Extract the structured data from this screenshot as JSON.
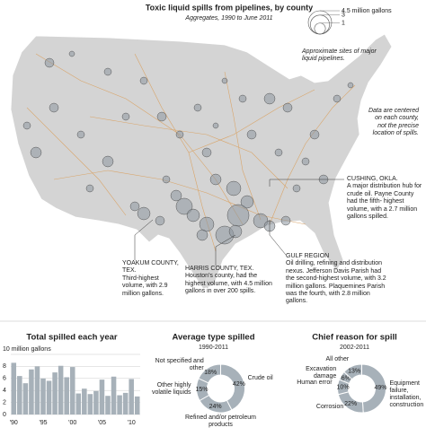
{
  "map": {
    "title": "Toxic liquid spills from pipelines, by county",
    "subtitle": "Aggregates, 1990 to June 2011",
    "size_legend": [
      {
        "value": 4.5,
        "label": "4.5 million gallons"
      },
      {
        "value": 3,
        "label": "3"
      },
      {
        "value": 1,
        "label": "1"
      }
    ],
    "notes": [
      "Approximate sites of major liquid pipelines.",
      "Data are centered on each county, not the precise location of spills."
    ],
    "callouts": [
      {
        "heading": "CUSHING, OKLA.",
        "text": "A major distribution hub for crude oil. Payne County had the fifth- highest volume, with a 2.7 million gallons spilled."
      },
      {
        "heading": "YOAKUM COUNTY, TEX.",
        "text": "Third-highest volume, with 2.9 million gallons."
      },
      {
        "heading": "HARRIS COUNTY, TEX.",
        "text": "Houston's county, had the highest volume, with 4.5 million gallons in over 200 spills."
      },
      {
        "heading": "GULF REGION",
        "text": "Oil drilling, refining and distribution nexus. Jefferson Davis Parish had the second-highest volume, with 3.2 million gallons. Plaquemines Parish was the fourth, with 2.8 million gallons."
      }
    ]
  },
  "chart_data": [
    {
      "type": "bar",
      "title": "Total spilled each year",
      "categories": [
        "'90",
        null,
        null,
        null,
        null,
        "'95",
        null,
        null,
        null,
        null,
        "'00",
        null,
        null,
        null,
        null,
        "'05",
        null,
        null,
        null,
        null,
        "'10",
        null
      ],
      "values": [
        8.6,
        6.4,
        5.2,
        7.5,
        8.0,
        6.0,
        5.6,
        7.0,
        8.1,
        6.2,
        7.9,
        3.5,
        4.3,
        3.4,
        3.9,
        5.8,
        3.1,
        6.3,
        3.2,
        3.6,
        5.9,
        3.0
      ],
      "color": "#a7b1b9",
      "ylim": [
        0,
        10
      ],
      "yticks": [
        0,
        2,
        4,
        6,
        8,
        {
          "value": 10,
          "label": "10 million gallons"
        }
      ],
      "grid": true
    },
    {
      "type": "pie",
      "title": "Average type spilled",
      "subtitle": "1990-2011",
      "categories": [
        "Crude oil",
        "Refined and/or petroleum products",
        "Other highly volatile liquids",
        "Not specified and other"
      ],
      "values": [
        42,
        24,
        15,
        18
      ],
      "value_labels": [
        "42%",
        "24%",
        "15%",
        "18%"
      ],
      "color": "#a7b1b9"
    },
    {
      "type": "pie",
      "title": "Chief reason for spill",
      "subtitle": "2002-2011",
      "categories": [
        "Equipment failure, installation, construction",
        "Corrosion",
        "Human error",
        "Excavation damage",
        "All other"
      ],
      "values": [
        49,
        22,
        10,
        6,
        13
      ],
      "value_labels": [
        "49%",
        "22%",
        "10%",
        "6%",
        "13%"
      ],
      "color": "#a7b1b9"
    }
  ]
}
